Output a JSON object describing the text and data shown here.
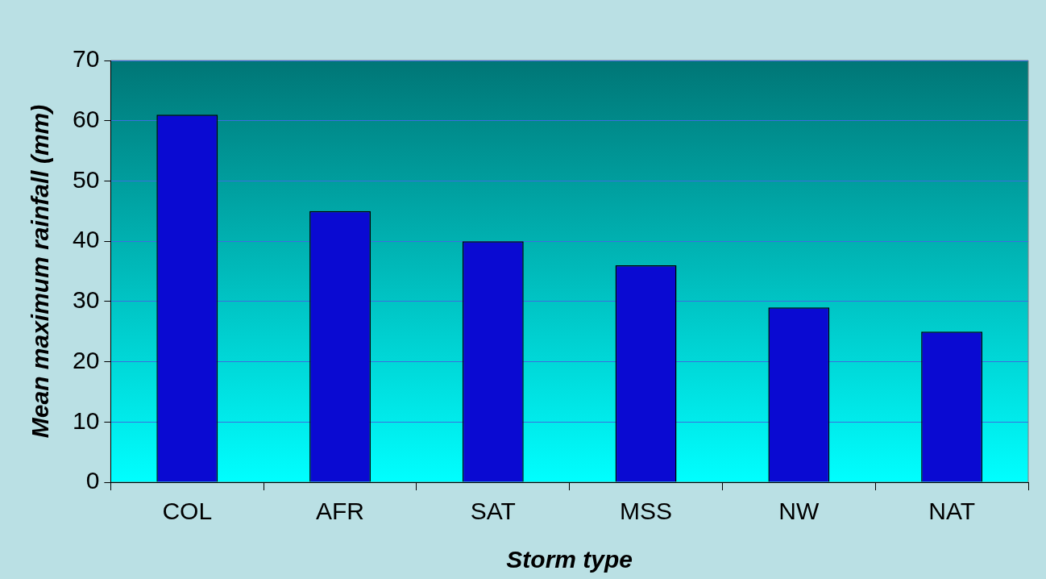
{
  "chart_data": {
    "type": "bar",
    "xlabel": "Storm type",
    "ylabel": "Mean maximum rainfall (mm)",
    "categories": [
      "COL",
      "AFR",
      "SAT",
      "MSS",
      "NW",
      "NAT"
    ],
    "values": [
      61,
      45,
      40,
      36,
      29,
      25
    ],
    "color": "#0a0ad2",
    "ylim": [
      0,
      70
    ],
    "yticks": [
      0,
      10,
      20,
      30,
      40,
      50,
      60,
      70
    ],
    "grid": "y"
  }
}
